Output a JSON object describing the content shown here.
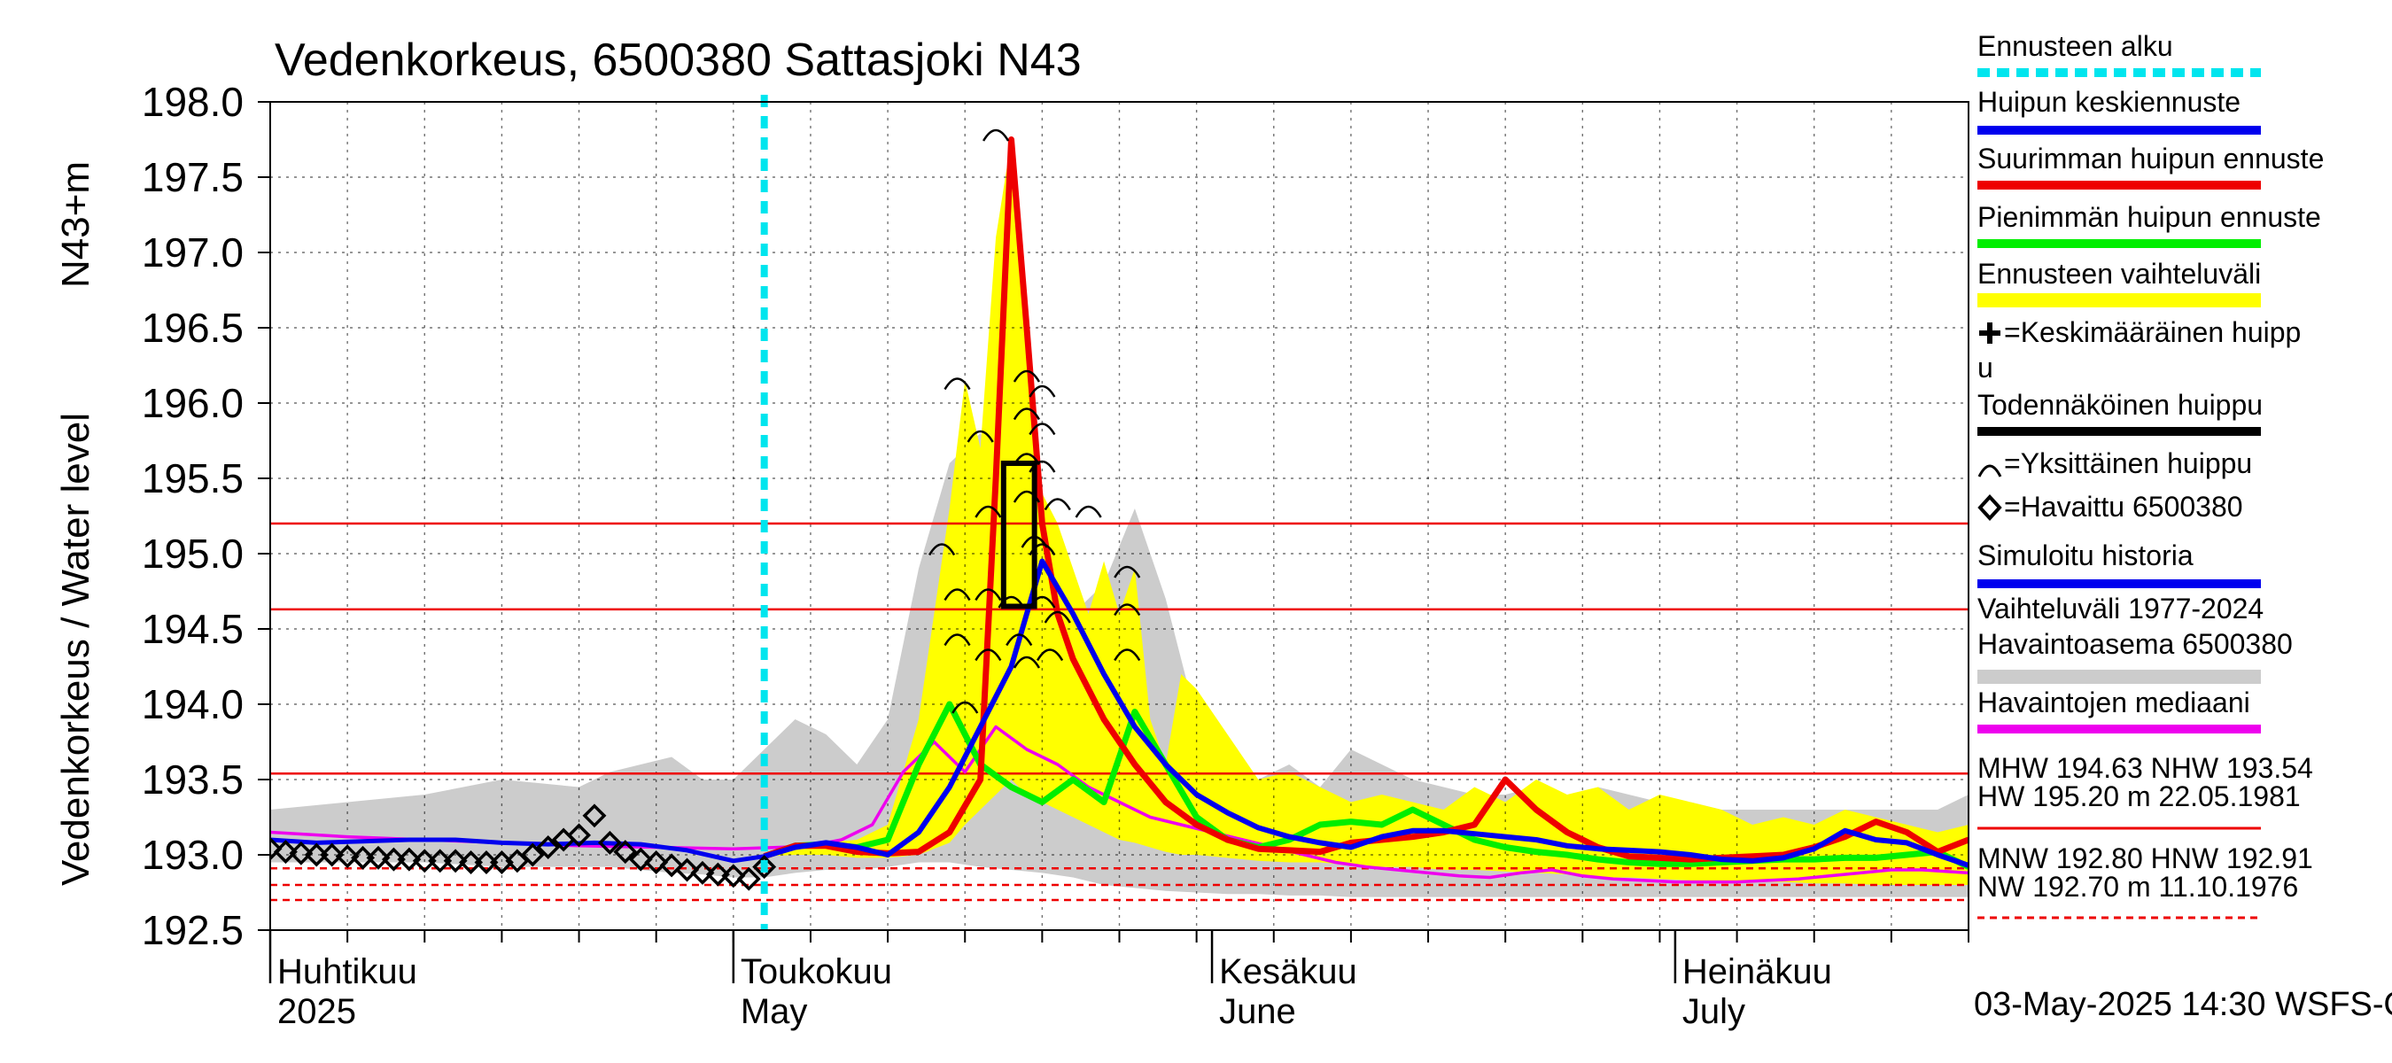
{
  "chart_data": {
    "type": "line",
    "title": "Vedenkorkeus, 6500380 Sattasjoki N43",
    "ylabel_primary": "Vedenkorkeus / Water level",
    "ylabel_unit": "N43+m",
    "ylim": [
      192.5,
      198.0
    ],
    "yticks": [
      "192.5",
      "193.0",
      "193.5",
      "194.0",
      "194.5",
      "195.0",
      "195.5",
      "196.0",
      "196.5",
      "197.0",
      "197.5",
      "198.0"
    ],
    "x_range_days": [
      0,
      110
    ],
    "month_labels": [
      {
        "fi": "Huhtikuu",
        "en": "2025",
        "day": 0
      },
      {
        "fi": "Toukokuu",
        "en": "May",
        "day": 30
      },
      {
        "fi": "Kesäkuu",
        "en": "June",
        "day": 61
      },
      {
        "fi": "Heinäkuu",
        "en": "July",
        "day": 91
      }
    ],
    "forecast_start_day": 32,
    "reference_levels": [
      {
        "name": "HW",
        "value": 195.2
      },
      {
        "name": "MHW",
        "value": 194.63
      },
      {
        "name": "NHW",
        "value": 193.54
      },
      {
        "name": "HNW",
        "value": 192.91
      },
      {
        "name": "MNW",
        "value": 192.8
      },
      {
        "name": "NW",
        "value": 192.7
      }
    ],
    "legend": [
      {
        "label": "Ennusteen alku",
        "color": "#00e5ee",
        "style": "dashed"
      },
      {
        "label": "Huipun keskiennuste",
        "color": "#0000ee",
        "style": "solid"
      },
      {
        "label": "Suurimman huipun ennuste",
        "color": "#ee0000",
        "style": "solid"
      },
      {
        "label": "Pienimmän huipun ennuste",
        "color": "#00ee00",
        "style": "solid"
      },
      {
        "label": "Ennusteen vaihteluväli",
        "color": "#ffff00",
        "style": "band"
      },
      {
        "label": "=Keskimääräinen huipp",
        "label2": "u",
        "color": "#000000",
        "style": "plus"
      },
      {
        "label": "Todennäköinen huippu",
        "color": "#000000",
        "style": "solid"
      },
      {
        "label": "=Yksittäinen huippu",
        "color": "#000000",
        "style": "arc"
      },
      {
        "label": "=Havaittu 6500380",
        "color": "#000000",
        "style": "diamond"
      },
      {
        "label": "Simuloitu historia",
        "color": "#0000ee",
        "style": "solid"
      },
      {
        "label": "Vaihteluväli 1977-2024",
        "label2": " Havaintoasema 6500380",
        "color": "#cccccc",
        "style": "band"
      },
      {
        "label": "Havaintojen mediaani",
        "color": "#ee00ee",
        "style": "solid"
      }
    ],
    "stats_text": [
      "MHW 194.63 NHW 193.54",
      "HW 195.20 m 22.05.1981",
      "MNW 192.80 HNW 192.91",
      "NW 192.70 m 11.10.1976"
    ],
    "footer": "03-May-2025 14:30 WSFS-O",
    "series": {
      "observed": {
        "x": [
          0,
          1,
          2,
          3,
          4,
          5,
          6,
          7,
          8,
          9,
          10,
          11,
          12,
          13,
          14,
          15,
          16,
          17,
          18,
          19,
          20,
          21,
          22,
          23,
          24,
          25,
          26,
          27,
          28,
          29,
          30,
          31,
          32
        ],
        "y": [
          193.04,
          193.02,
          193.01,
          193.0,
          193.0,
          192.99,
          192.98,
          192.98,
          192.97,
          192.97,
          192.96,
          192.96,
          192.96,
          192.95,
          192.95,
          192.95,
          192.96,
          193.0,
          193.05,
          193.1,
          193.13,
          193.26,
          193.08,
          193.02,
          192.97,
          192.95,
          192.93,
          192.9,
          192.88,
          192.87,
          192.86,
          192.84,
          192.92
        ]
      },
      "simulated": {
        "x": [
          0,
          3,
          6,
          9,
          12,
          15,
          18,
          21,
          24,
          27,
          30,
          32
        ],
        "y": [
          193.1,
          193.08,
          193.09,
          193.1,
          193.1,
          193.08,
          193.07,
          193.08,
          193.07,
          193.03,
          192.96,
          192.99
        ]
      },
      "median": {
        "x": [
          0,
          5,
          10,
          15,
          20,
          25,
          30,
          33,
          35,
          37,
          39,
          41,
          43,
          45,
          47,
          49,
          51,
          53,
          55,
          57,
          59,
          61,
          63,
          65,
          67,
          69,
          71,
          73,
          75,
          77,
          79,
          81,
          83,
          85,
          87,
          89,
          91,
          93,
          95,
          97,
          99,
          101,
          103,
          105,
          107,
          110
        ],
        "y": [
          193.15,
          193.12,
          193.1,
          193.08,
          193.06,
          193.05,
          193.04,
          193.05,
          193.06,
          193.1,
          193.2,
          193.55,
          193.75,
          193.55,
          193.85,
          193.7,
          193.6,
          193.45,
          193.35,
          193.25,
          193.2,
          193.15,
          193.1,
          193.05,
          193.0,
          192.95,
          192.92,
          192.9,
          192.88,
          192.86,
          192.85,
          192.88,
          192.9,
          192.86,
          192.84,
          192.83,
          192.82,
          192.82,
          192.82,
          192.83,
          192.84,
          192.86,
          192.88,
          192.9,
          192.9,
          192.88
        ]
      },
      "mean_forecast": {
        "x": [
          32,
          34,
          36,
          38,
          40,
          42,
          44,
          46,
          48,
          50,
          52,
          54,
          56,
          58,
          60,
          62,
          64,
          66,
          68,
          70,
          72,
          74,
          76,
          78,
          80,
          82,
          84,
          86,
          88,
          90,
          92,
          94,
          96,
          98,
          100,
          102,
          104,
          106,
          108,
          110
        ],
        "y": [
          192.99,
          193.05,
          193.08,
          193.05,
          193.0,
          193.15,
          193.45,
          193.85,
          194.25,
          194.95,
          194.6,
          194.2,
          193.85,
          193.6,
          193.4,
          193.28,
          193.18,
          193.12,
          193.08,
          193.05,
          193.12,
          193.16,
          193.16,
          193.14,
          193.12,
          193.1,
          193.06,
          193.04,
          193.03,
          193.02,
          193.0,
          192.97,
          192.96,
          192.98,
          193.04,
          193.16,
          193.1,
          193.08,
          193.0,
          192.93
        ]
      },
      "max_forecast": {
        "x": [
          32,
          34,
          36,
          38,
          40,
          42,
          44,
          46,
          47,
          48,
          49,
          50,
          51,
          52,
          54,
          56,
          58,
          60,
          62,
          64,
          66,
          68,
          70,
          72,
          74,
          76,
          78,
          80,
          82,
          84,
          86,
          88,
          90,
          92,
          94,
          96,
          98,
          100,
          102,
          104,
          106,
          108,
          110
        ],
        "y": [
          192.99,
          193.06,
          193.06,
          193.02,
          193.01,
          193.02,
          193.15,
          193.5,
          195.5,
          197.75,
          196.5,
          195.2,
          194.6,
          194.3,
          193.9,
          193.6,
          193.35,
          193.2,
          193.1,
          193.04,
          193.03,
          193.02,
          193.08,
          193.1,
          193.12,
          193.15,
          193.2,
          193.5,
          193.3,
          193.15,
          193.05,
          192.99,
          192.98,
          192.97,
          192.98,
          192.99,
          193.0,
          193.05,
          193.12,
          193.22,
          193.15,
          193.02,
          193.1
        ]
      },
      "min_forecast": {
        "x": [
          32,
          34,
          36,
          38,
          40,
          42,
          44,
          46,
          48,
          50,
          52,
          54,
          56,
          58,
          60,
          62,
          64,
          66,
          68,
          70,
          72,
          74,
          76,
          78,
          80,
          82,
          84,
          86,
          88,
          90,
          92,
          94,
          96,
          98,
          100,
          102,
          104,
          106,
          108,
          110
        ],
        "y": [
          192.99,
          193.06,
          193.07,
          193.05,
          193.1,
          193.6,
          194.0,
          193.6,
          193.45,
          193.35,
          193.5,
          193.35,
          193.95,
          193.6,
          193.25,
          193.1,
          193.05,
          193.1,
          193.2,
          193.22,
          193.2,
          193.3,
          193.2,
          193.1,
          193.05,
          193.02,
          193.0,
          192.97,
          192.95,
          192.94,
          192.94,
          192.95,
          192.96,
          192.97,
          192.97,
          192.98,
          192.98,
          193.0,
          193.02,
          192.92
        ]
      },
      "forecast_band": {
        "x": [
          32,
          34,
          36,
          38,
          40,
          42,
          44,
          45,
          46,
          47,
          48,
          49,
          50,
          51,
          52,
          53,
          54,
          55,
          56,
          57,
          58,
          59,
          60,
          62,
          64,
          66,
          68,
          70,
          72,
          74,
          76,
          78,
          80,
          82,
          84,
          86,
          88,
          90,
          92,
          94,
          96,
          98,
          100,
          102,
          104,
          106,
          108,
          110
        ],
        "upper": [
          193.0,
          193.06,
          193.08,
          193.1,
          193.2,
          193.9,
          195.3,
          196.15,
          195.7,
          197.1,
          197.75,
          196.5,
          195.4,
          195.2,
          194.9,
          194.6,
          194.95,
          194.6,
          194.9,
          193.9,
          193.6,
          194.2,
          194.1,
          193.8,
          193.5,
          193.55,
          193.45,
          193.35,
          193.4,
          193.35,
          193.3,
          193.45,
          193.35,
          193.5,
          193.4,
          193.45,
          193.3,
          193.4,
          193.35,
          193.3,
          193.2,
          193.25,
          193.2,
          193.3,
          193.25,
          193.2,
          193.15,
          193.2
        ],
        "lower": [
          192.99,
          193.0,
          193.0,
          192.98,
          192.98,
          193.0,
          193.08,
          193.2,
          193.3,
          193.4,
          193.5,
          193.4,
          193.35,
          193.3,
          193.25,
          193.2,
          193.15,
          193.1,
          193.08,
          193.05,
          193.02,
          193.0,
          193.0,
          192.98,
          192.96,
          192.95,
          192.95,
          192.93,
          192.92,
          192.92,
          192.9,
          192.9,
          192.89,
          192.88,
          192.87,
          192.85,
          192.85,
          192.84,
          192.83,
          192.83,
          192.82,
          192.82,
          192.81,
          192.81,
          192.8,
          192.8,
          192.8,
          192.8
        ]
      },
      "history_band": {
        "x": [
          0,
          5,
          10,
          15,
          20,
          22,
          24,
          26,
          28,
          30,
          32,
          34,
          36,
          38,
          40,
          42,
          44,
          46,
          48,
          50,
          52,
          54,
          56,
          58,
          60,
          62,
          64,
          66,
          68,
          70,
          72,
          74,
          76,
          78,
          80,
          82,
          84,
          86,
          88,
          90,
          92,
          94,
          96,
          98,
          100,
          102,
          104,
          106,
          108,
          110
        ],
        "upper": [
          193.3,
          193.35,
          193.4,
          193.5,
          193.45,
          193.55,
          193.6,
          193.65,
          193.5,
          193.5,
          193.7,
          193.9,
          193.8,
          193.6,
          193.9,
          194.9,
          195.6,
          195.8,
          195.5,
          195.1,
          194.6,
          194.8,
          195.3,
          194.7,
          193.9,
          193.7,
          193.5,
          193.6,
          193.45,
          193.7,
          193.6,
          193.5,
          193.45,
          193.4,
          193.4,
          193.45,
          193.3,
          193.45,
          193.4,
          193.35,
          193.35,
          193.3,
          193.3,
          193.3,
          193.3,
          193.3,
          193.3,
          193.3,
          193.3,
          193.4
        ],
        "lower": [
          192.95,
          192.95,
          192.95,
          192.92,
          192.92,
          192.92,
          192.9,
          192.88,
          192.87,
          192.85,
          192.85,
          192.88,
          192.9,
          192.9,
          192.92,
          192.95,
          192.95,
          192.92,
          192.9,
          192.88,
          192.85,
          192.8,
          192.78,
          192.76,
          192.75,
          192.74,
          192.74,
          192.73,
          192.73,
          192.72,
          192.72,
          192.72,
          192.72,
          192.72,
          192.72,
          192.72,
          192.72,
          192.72,
          192.72,
          192.72,
          192.72,
          192.72,
          192.72,
          192.72,
          192.72,
          192.72,
          192.72,
          192.72,
          192.72,
          192.72
        ]
      },
      "peak_arcs": [
        {
          "x": 44.5,
          "y": 196.15
        },
        {
          "x": 43.5,
          "y": 195.05
        },
        {
          "x": 44.5,
          "y": 194.75
        },
        {
          "x": 44.5,
          "y": 194.45
        },
        {
          "x": 45.0,
          "y": 194.0
        },
        {
          "x": 46.0,
          "y": 195.8
        },
        {
          "x": 46.5,
          "y": 195.3
        },
        {
          "x": 46.5,
          "y": 194.75
        },
        {
          "x": 46.5,
          "y": 194.35
        },
        {
          "x": 47.0,
          "y": 197.8
        },
        {
          "x": 49.0,
          "y": 196.2
        },
        {
          "x": 49.0,
          "y": 195.95
        },
        {
          "x": 49.0,
          "y": 195.65
        },
        {
          "x": 49.0,
          "y": 195.4
        },
        {
          "x": 49.5,
          "y": 195.1
        },
        {
          "x": 48.0,
          "y": 194.7
        },
        {
          "x": 48.5,
          "y": 194.45
        },
        {
          "x": 49.0,
          "y": 194.3
        },
        {
          "x": 50.0,
          "y": 196.1
        },
        {
          "x": 50.0,
          "y": 195.85
        },
        {
          "x": 50.0,
          "y": 195.6
        },
        {
          "x": 50.0,
          "y": 195.05
        },
        {
          "x": 50.0,
          "y": 194.7
        },
        {
          "x": 50.5,
          "y": 194.35
        },
        {
          "x": 51.0,
          "y": 195.35
        },
        {
          "x": 51.0,
          "y": 194.6
        },
        {
          "x": 53.0,
          "y": 195.3
        },
        {
          "x": 55.5,
          "y": 194.9
        },
        {
          "x": 55.5,
          "y": 194.65
        },
        {
          "x": 55.5,
          "y": 194.35
        }
      ],
      "probable_peak": {
        "x0": 47.5,
        "x1": 49.5,
        "y0": 194.65,
        "y1": 195.6
      }
    }
  }
}
